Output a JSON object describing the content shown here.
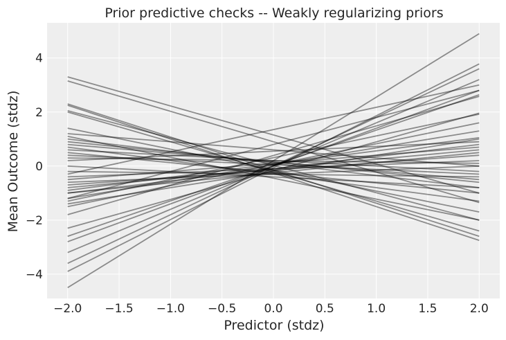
{
  "chart_data": {
    "type": "line",
    "title": "Prior predictive checks -- Weakly regularizing priors",
    "xlabel": "Predictor (stdz)",
    "ylabel": "Mean Outcome (stdz)",
    "xlim": [
      -2.2,
      2.2
    ],
    "ylim": [
      -4.9,
      5.3
    ],
    "xticks": [
      -2.0,
      -1.5,
      -1.0,
      -0.5,
      0.0,
      0.5,
      1.0,
      1.5,
      2.0
    ],
    "xtick_labels": [
      "−2.0",
      "−1.5",
      "−1.0",
      "−0.5",
      "0.0",
      "0.5",
      "1.0",
      "1.5",
      "2.0"
    ],
    "yticks": [
      -4,
      -2,
      0,
      2,
      4
    ],
    "ytick_labels": [
      "−4",
      "−2",
      "0",
      "2",
      "4"
    ],
    "grid": true,
    "background_color": "#eeeeee",
    "line_color": "#000000",
    "x": [
      -2.0,
      2.0
    ],
    "series": [
      {
        "values": [
          -4.5,
          4.9
        ]
      },
      {
        "values": [
          -3.9,
          3.78
        ]
      },
      {
        "values": [
          -3.6,
          3.6
        ]
      },
      {
        "values": [
          -3.2,
          3.2
        ]
      },
      {
        "values": [
          -2.8,
          2.8
        ]
      },
      {
        "values": [
          -2.6,
          2.64
        ]
      },
      {
        "values": [
          -2.3,
          1.96
        ]
      },
      {
        "values": [
          -1.8,
          2.58
        ]
      },
      {
        "values": [
          -1.5,
          1.6
        ]
      },
      {
        "values": [
          -1.3,
          1.92
        ]
      },
      {
        "values": [
          -1.2,
          1.3
        ]
      },
      {
        "values": [
          -1.0,
          0.8
        ]
      },
      {
        "values": [
          -0.9,
          1.05
        ]
      },
      {
        "values": [
          -0.8,
          0.6
        ]
      },
      {
        "values": [
          -0.7,
          0.4
        ]
      },
      {
        "values": [
          -0.6,
          0.0
        ]
      },
      {
        "values": [
          -0.4,
          0.2
        ]
      },
      {
        "values": [
          -0.2,
          -0.4
        ]
      },
      {
        "values": [
          0.0,
          -0.8
        ]
      },
      {
        "values": [
          0.2,
          0.9
        ]
      },
      {
        "values": [
          0.4,
          -0.3
        ]
      },
      {
        "values": [
          0.5,
          -1.0
        ]
      },
      {
        "values": [
          0.7,
          -1.3
        ]
      },
      {
        "values": [
          0.9,
          -0.6
        ]
      },
      {
        "values": [
          1.1,
          -2.0
        ]
      },
      {
        "values": [
          1.4,
          -1.7
        ]
      },
      {
        "values": [
          2.0,
          -2.4
        ]
      },
      {
        "values": [
          2.05,
          -2.0
        ]
      },
      {
        "values": [
          2.25,
          -2.75
        ]
      },
      {
        "values": [
          2.3,
          -2.6
        ]
      },
      {
        "values": [
          3.15,
          -1.35
        ]
      },
      {
        "values": [
          3.3,
          -1.0
        ]
      },
      {
        "values": [
          -1.2,
          2.8
        ]
      },
      {
        "values": [
          -0.3,
          3.0
        ]
      },
      {
        "values": [
          0.8,
          -0.5
        ]
      },
      {
        "values": [
          1.0,
          -0.8
        ]
      },
      {
        "values": [
          -1.0,
          0.5
        ]
      },
      {
        "values": [
          0.3,
          0.1
        ]
      },
      {
        "values": [
          -0.5,
          0.7
        ]
      },
      {
        "values": [
          0.6,
          -0.2
        ]
      },
      {
        "values": [
          -1.4,
          1.0
        ]
      },
      {
        "values": [
          1.2,
          0.0
        ]
      }
    ]
  }
}
